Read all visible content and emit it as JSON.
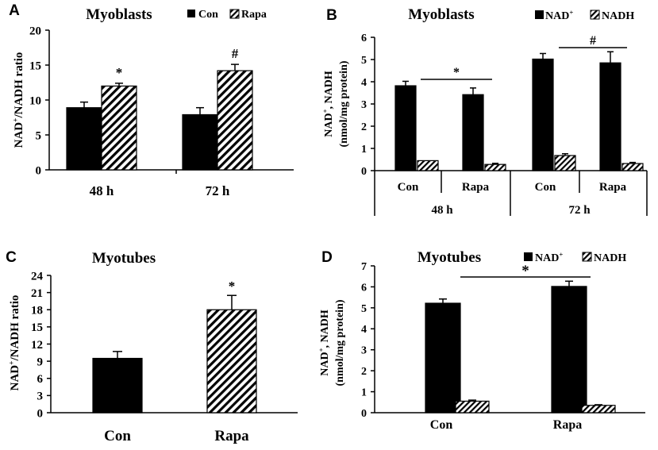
{
  "figure": {
    "colors": {
      "con": "#000000",
      "hatch": "#000000",
      "background": "#ffffff"
    }
  },
  "chart_data": [
    {
      "panel": "A",
      "type": "bar",
      "title": "Myoblasts",
      "ylabel": "NAD+/NADH ratio",
      "xlabel": "",
      "ylim": [
        0,
        20
      ],
      "yticks": [
        "0",
        "5",
        "10",
        "15",
        "20"
      ],
      "categories": [
        "48 h",
        "72 h"
      ],
      "series": [
        {
          "name": "Con",
          "pattern": "solid",
          "values": [
            8.9,
            7.9
          ],
          "errors": [
            0.8,
            1.0
          ]
        },
        {
          "name": "Rapa",
          "pattern": "hatch",
          "values": [
            12.0,
            14.2
          ],
          "errors": [
            0.4,
            0.9
          ]
        }
      ],
      "legend": [
        "Con",
        "Rapa"
      ],
      "legend_position": "top-right",
      "annotations": [
        {
          "text": "*",
          "category": 0,
          "series": 1
        },
        {
          "text": "#",
          "category": 1,
          "series": 1
        }
      ]
    },
    {
      "panel": "B",
      "type": "bar",
      "title": "Myoblasts",
      "ylabel_line1": "NAD+, NADH",
      "ylabel_line2": "(nmol/mg protein)",
      "xlabel": "",
      "ylim": [
        0,
        6
      ],
      "yticks": [
        "0",
        "1",
        "2",
        "3",
        "4",
        "5",
        "6"
      ],
      "categories": [
        "Con",
        "Rapa",
        "Con",
        "Rapa"
      ],
      "groups": [
        "48 h",
        "72 h"
      ],
      "series": [
        {
          "name": "NAD+",
          "pattern": "solid",
          "values": [
            3.82,
            3.42,
            5.02,
            4.85
          ],
          "errors": [
            0.2,
            0.3,
            0.25,
            0.5
          ]
        },
        {
          "name": "NADH",
          "pattern": "hatch",
          "values": [
            0.45,
            0.28,
            0.68,
            0.32
          ],
          "errors": [
            0.0,
            0.05,
            0.08,
            0.05
          ]
        }
      ],
      "legend": [
        "NAD+",
        "NADH"
      ],
      "legend_position": "top-right",
      "annotations": [
        {
          "text": "*",
          "from": 0,
          "to": 1
        },
        {
          "text": "#",
          "from": 2,
          "to": 3
        }
      ]
    },
    {
      "panel": "C",
      "type": "bar",
      "title": "Myotubes",
      "ylabel": "NAD+/NADH ratio",
      "xlabel": "",
      "ylim": [
        0,
        24
      ],
      "yticks": [
        "0",
        "3",
        "6",
        "9",
        "12",
        "15",
        "18",
        "21",
        "24"
      ],
      "categories": [
        "Con",
        "Rapa"
      ],
      "series": [
        {
          "name": "Ratio",
          "values": [
            9.5,
            18.0
          ],
          "errors": [
            1.2,
            2.5
          ],
          "patterns": [
            "solid",
            "hatch"
          ]
        }
      ],
      "legend_position": "none",
      "annotations": [
        {
          "text": "*",
          "category": 1,
          "series": 0
        }
      ]
    },
    {
      "panel": "D",
      "type": "bar",
      "title": "Myotubes",
      "ylabel_line1": "NAD+, NADH",
      "ylabel_line2": "(nmol/mg protein)",
      "xlabel": "",
      "ylim": [
        0,
        7
      ],
      "yticks": [
        "0",
        "1",
        "2",
        "3",
        "4",
        "5",
        "6",
        "7"
      ],
      "categories": [
        "Con",
        "Rapa"
      ],
      "series": [
        {
          "name": "NAD+",
          "pattern": "solid",
          "values": [
            5.22,
            6.02
          ],
          "errors": [
            0.2,
            0.25
          ]
        },
        {
          "name": "NADH",
          "pattern": "hatch",
          "values": [
            0.55,
            0.35
          ],
          "errors": [
            0.05,
            0.03
          ]
        }
      ],
      "legend": [
        "NAD+",
        "NADH"
      ],
      "legend_position": "top-right",
      "annotations": [
        {
          "text": "*",
          "from": 0,
          "to": 1
        }
      ]
    }
  ]
}
